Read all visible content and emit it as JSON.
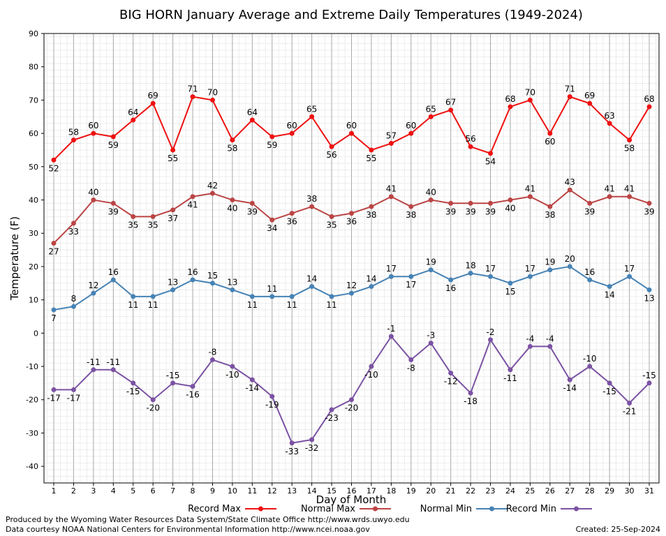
{
  "chart_data": {
    "type": "line",
    "title": "BIG HORN January Average and Extreme Daily Temperatures (1949-2024)",
    "xlabel": "Day of Month",
    "ylabel": "Temperature (F)",
    "ylim": [
      -45,
      90
    ],
    "yticks": [
      90,
      80,
      70,
      60,
      50,
      40,
      30,
      20,
      10,
      0,
      -10,
      -20,
      -30,
      -40
    ],
    "grid": true,
    "legend_placement": "bottom",
    "x": [
      1,
      2,
      3,
      4,
      5,
      6,
      7,
      8,
      9,
      10,
      11,
      12,
      13,
      14,
      15,
      16,
      17,
      18,
      19,
      20,
      21,
      22,
      23,
      24,
      25,
      26,
      27,
      28,
      29,
      30,
      31
    ],
    "series": [
      {
        "name": "Record Max",
        "color": "#ee1111",
        "values": [
          52,
          58,
          60,
          59,
          64,
          69,
          55,
          71,
          70,
          58,
          64,
          59,
          60,
          65,
          56,
          60,
          55,
          57,
          60,
          65,
          67,
          56,
          54,
          68,
          70,
          60,
          71,
          69,
          63,
          58,
          68
        ]
      },
      {
        "name": "Normal Max",
        "color": "#bb4444",
        "values": [
          27,
          33,
          40,
          39,
          35,
          35,
          37,
          41,
          42,
          40,
          39,
          34,
          36,
          38,
          35,
          36,
          38,
          41,
          38,
          40,
          39,
          39,
          39,
          40,
          41,
          38,
          43,
          39,
          41,
          41,
          39
        ]
      },
      {
        "name": "Normal Min",
        "color": "#4682b4",
        "values": [
          7,
          8,
          12,
          16,
          11,
          11,
          13,
          16,
          15,
          13,
          11,
          11,
          11,
          14,
          11,
          12,
          14,
          17,
          17,
          19,
          16,
          18,
          17,
          15,
          17,
          19,
          20,
          16,
          14,
          17,
          13
        ]
      },
      {
        "name": "Record Min",
        "color": "#7b52a3",
        "values": [
          -17,
          -17,
          -11,
          -11,
          -15,
          -20,
          -15,
          -16,
          -8,
          -10,
          -14,
          -19,
          -33,
          -32,
          -23,
          -20,
          -10,
          -1,
          -8,
          -3,
          -12,
          -18,
          -2,
          -11,
          -4,
          -4,
          -14,
          -10,
          -15,
          -21,
          -15
        ]
      }
    ]
  },
  "footer": {
    "produced_by": "Produced by the Wyoming Water Resources Data System/State Climate Office http://www.wrds.uwyo.edu",
    "data_courtesy": "Data courtesy NOAA National Centers for Environmental Information http://www.ncei.noaa.gov",
    "created": "Created:  25-Sep-2024"
  }
}
